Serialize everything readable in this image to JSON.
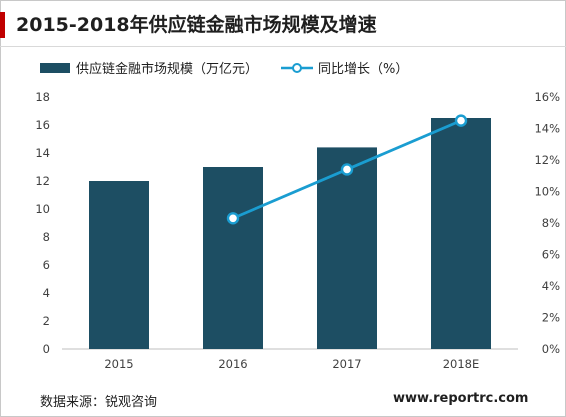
{
  "title": "2015-2018年供应链金融市场规模及增速",
  "source": "数据来源：锐观咨询",
  "website": "www.reportrc.com",
  "colors": {
    "bar": "#1d4e63",
    "line": "#1a9dd1",
    "title_accent": "#c00000"
  },
  "chart_data": {
    "type": "bar+line",
    "categories": [
      "2015",
      "2016",
      "2017",
      "2018E"
    ],
    "series": [
      {
        "name": "供应链金融市场规模（万亿元）",
        "type": "bar",
        "axis": "left",
        "values": [
          12.0,
          13.0,
          14.4,
          16.5
        ]
      },
      {
        "name": "同比增长（%）",
        "type": "line",
        "axis": "right",
        "values": [
          null,
          8.3,
          11.4,
          14.5
        ]
      }
    ],
    "y_left": {
      "min": 0,
      "max": 18,
      "ticks": [
        "0",
        "2",
        "4",
        "6",
        "8",
        "10",
        "12",
        "14",
        "16",
        "18"
      ]
    },
    "y_right": {
      "min": 0,
      "max": 16,
      "ticks": [
        "0%",
        "2%",
        "4%",
        "6%",
        "8%",
        "10%",
        "12%",
        "14%",
        "16%"
      ]
    },
    "legend": "top",
    "grid": false
  }
}
